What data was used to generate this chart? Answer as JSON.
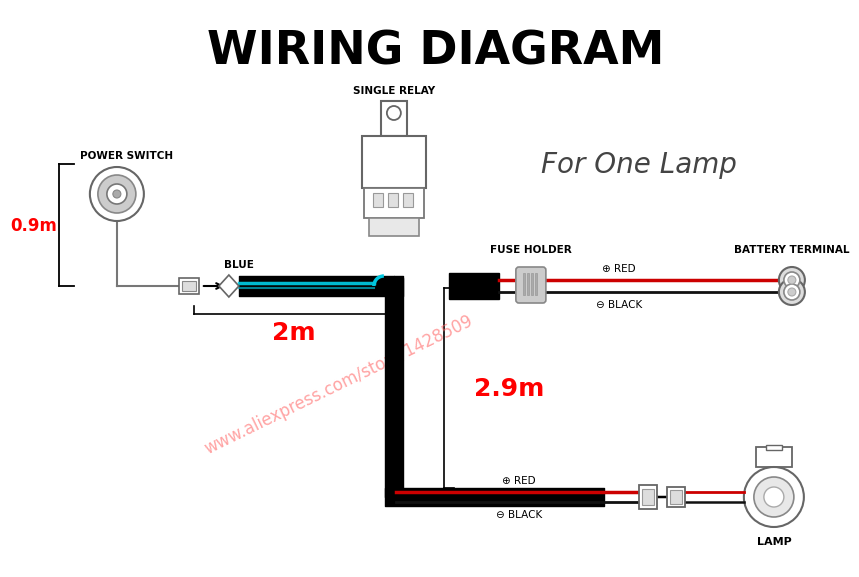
{
  "title": "WIRING DIAGRAM",
  "subtitle": "For One Lamp",
  "watermark": "www.aliexpress.com/store/1428509",
  "bg_color": "#ffffff",
  "title_color": "#000000",
  "subtitle_color": "#444444",
  "watermark_color": "#ff6666",
  "label_0_9m": "0.9m",
  "label_2m": "2m",
  "label_2_9m": "2.9m",
  "label_blue": "BLUE",
  "label_power_switch": "POWER SWITCH",
  "label_single_relay": "SINGLE RELAY",
  "label_fuse_holder": "FUSE HOLDER",
  "label_battery_terminal": "BATTERY TERMINAL",
  "label_lamp": "LAMP",
  "label_red_plus": "⊕ RED",
  "label_black_minus": "⊖ BLACK",
  "label_red_plus2": "⊕ RED",
  "label_black_minus2": "⊖ BLACK"
}
